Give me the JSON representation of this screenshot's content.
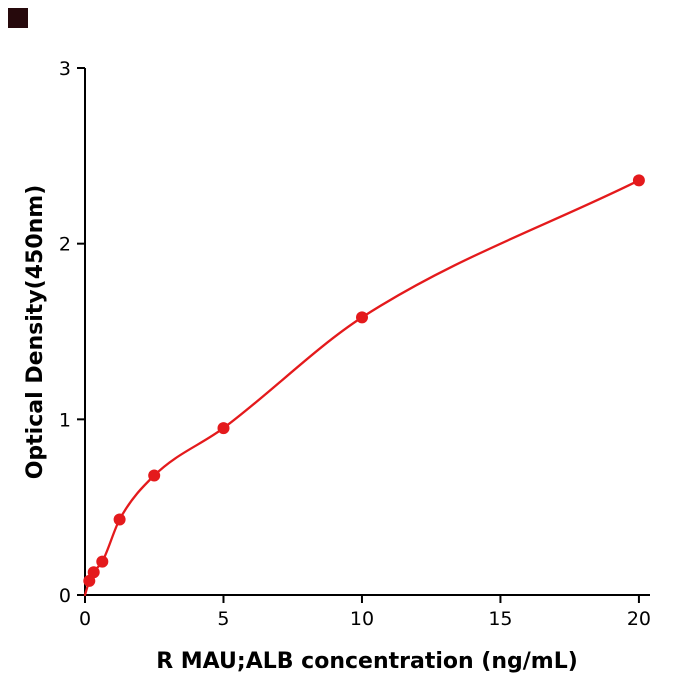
{
  "page": {
    "background": "#ffffff"
  },
  "corner_mark": {
    "color": "#26090c"
  },
  "chart_data": {
    "type": "scatter",
    "title": "",
    "xlabel": "R  MAU;ALB concentration (ng/mL)",
    "ylabel": "Optical Density(450nm)",
    "x": [
      0.156,
      0.313,
      0.625,
      1.25,
      2.5,
      5,
      10,
      20
    ],
    "y": [
      0.08,
      0.13,
      0.19,
      0.43,
      0.68,
      0.95,
      1.58,
      2.36
    ],
    "curve_start": [
      0,
      0
    ],
    "xlim": [
      0,
      20.4
    ],
    "ylim": [
      0,
      3
    ],
    "xticks": [
      0,
      5,
      10,
      15,
      20
    ],
    "yticks": [
      0,
      1,
      2,
      3
    ],
    "point_color": "#e41a1c",
    "line_color": "#e41a1c",
    "axis_color": "#000000",
    "grid": false,
    "legend": null
  }
}
